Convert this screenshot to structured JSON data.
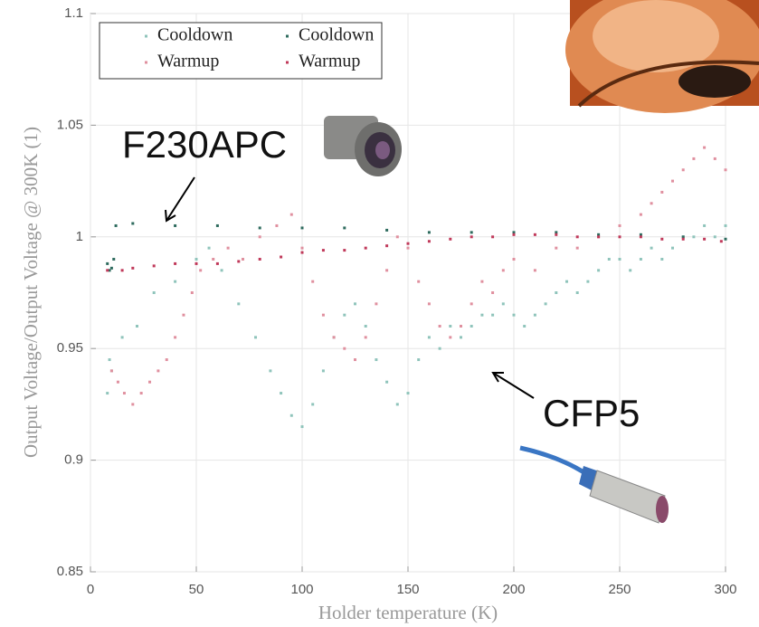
{
  "chart_data": {
    "type": "scatter",
    "xlabel": "Holder temperature (K)",
    "ylabel": "Output Voltage/Output Voltage @ 300K (1)",
    "xlim": [
      0,
      300
    ],
    "xticks": [
      0,
      50,
      100,
      150,
      200,
      250,
      300
    ],
    "ylim": [
      0.85,
      1.1
    ],
    "yticks": [
      0.85,
      0.9,
      0.95,
      1,
      1.05,
      1.1
    ],
    "grid": true,
    "legend": "upper left",
    "annotations": [
      "F230APC",
      "CFP5"
    ],
    "series": [
      {
        "name": "Cooldown",
        "color": "#8fc4bb",
        "x": [
          8,
          9,
          10,
          15,
          22,
          30,
          40,
          50,
          56,
          62,
          70,
          78,
          85,
          90,
          95,
          100,
          105,
          110,
          115,
          120,
          125,
          130,
          135,
          140,
          145,
          150,
          155,
          160,
          165,
          170,
          175,
          180,
          185,
          190,
          195,
          200,
          205,
          210,
          215,
          220,
          225,
          230,
          235,
          240,
          245,
          250,
          255,
          260,
          265,
          270,
          275,
          280,
          285,
          290,
          295,
          300
        ],
        "values": [
          0.93,
          0.945,
          0.94,
          0.955,
          0.96,
          0.975,
          0.98,
          0.99,
          0.995,
          0.985,
          0.97,
          0.955,
          0.94,
          0.93,
          0.92,
          0.915,
          0.925,
          0.94,
          0.955,
          0.965,
          0.97,
          0.96,
          0.945,
          0.935,
          0.925,
          0.93,
          0.945,
          0.955,
          0.95,
          0.96,
          0.955,
          0.96,
          0.965,
          0.965,
          0.97,
          0.965,
          0.96,
          0.965,
          0.97,
          0.975,
          0.98,
          0.975,
          0.98,
          0.985,
          0.99,
          0.99,
          0.985,
          0.99,
          0.995,
          0.99,
          0.995,
          1.0,
          1.0,
          1.005,
          1.0,
          1.005
        ]
      },
      {
        "name": "Warmup",
        "color": "#e0909f",
        "x": [
          10,
          13,
          16,
          20,
          24,
          28,
          32,
          36,
          40,
          44,
          48,
          52,
          58,
          65,
          72,
          80,
          88,
          95,
          100,
          105,
          110,
          115,
          120,
          125,
          130,
          135,
          140,
          145,
          150,
          155,
          160,
          165,
          170,
          175,
          180,
          185,
          190,
          195,
          200,
          210,
          220,
          230,
          240,
          250,
          260,
          265,
          270,
          275,
          280,
          285,
          290,
          295,
          300
        ],
        "values": [
          0.94,
          0.935,
          0.93,
          0.925,
          0.93,
          0.935,
          0.94,
          0.945,
          0.955,
          0.965,
          0.975,
          0.985,
          0.99,
          0.995,
          0.99,
          1.0,
          1.005,
          1.01,
          0.995,
          0.98,
          0.965,
          0.955,
          0.95,
          0.945,
          0.955,
          0.97,
          0.985,
          1.0,
          0.995,
          0.98,
          0.97,
          0.96,
          0.955,
          0.96,
          0.97,
          0.98,
          0.975,
          0.985,
          0.99,
          0.985,
          0.995,
          0.995,
          1.0,
          1.005,
          1.01,
          1.015,
          1.02,
          1.025,
          1.03,
          1.035,
          1.04,
          1.035,
          1.03
        ]
      },
      {
        "name": "Cooldown",
        "color": "#2e6b5e",
        "x": [
          8,
          9,
          10,
          11,
          12,
          20,
          40,
          60,
          80,
          100,
          120,
          140,
          160,
          180,
          200,
          220,
          240,
          260,
          280,
          300
        ],
        "values": [
          0.988,
          0.985,
          0.986,
          0.99,
          1.005,
          1.006,
          1.005,
          1.005,
          1.004,
          1.004,
          1.004,
          1.003,
          1.002,
          1.002,
          1.002,
          1.002,
          1.001,
          1.001,
          1.0,
          0.999
        ]
      },
      {
        "name": "Warmup",
        "color": "#c0395a",
        "x": [
          8,
          15,
          20,
          30,
          40,
          50,
          60,
          70,
          80,
          90,
          100,
          110,
          120,
          130,
          140,
          150,
          160,
          170,
          180,
          190,
          200,
          210,
          220,
          230,
          240,
          250,
          260,
          270,
          280,
          290,
          298
        ],
        "values": [
          0.985,
          0.985,
          0.986,
          0.987,
          0.988,
          0.988,
          0.988,
          0.989,
          0.99,
          0.991,
          0.993,
          0.994,
          0.994,
          0.995,
          0.996,
          0.997,
          0.998,
          0.999,
          1.0,
          1.0,
          1.001,
          1.001,
          1.001,
          1.0,
          1.0,
          1.0,
          1.0,
          0.999,
          0.999,
          0.999,
          0.998
        ]
      }
    ]
  }
}
